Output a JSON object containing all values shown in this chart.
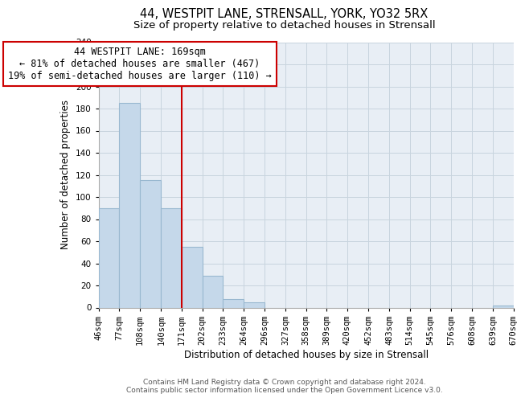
{
  "title_line1": "44, WESTPIT LANE, STRENSALL, YORK, YO32 5RX",
  "title_line2": "Size of property relative to detached houses in Strensall",
  "xlabel": "Distribution of detached houses by size in Strensall",
  "ylabel": "Number of detached properties",
  "bar_color": "#c5d8ea",
  "bar_edge_color": "#99b8d0",
  "bin_edges": [
    46,
    77,
    108,
    140,
    171,
    202,
    233,
    264,
    296,
    327,
    358,
    389,
    420,
    452,
    483,
    514,
    545,
    576,
    608,
    639,
    670
  ],
  "bar_heights": [
    90,
    185,
    115,
    90,
    55,
    29,
    8,
    5,
    0,
    0,
    0,
    0,
    0,
    0,
    0,
    0,
    0,
    0,
    0,
    2
  ],
  "tick_labels": [
    "46sqm",
    "77sqm",
    "108sqm",
    "140sqm",
    "171sqm",
    "202sqm",
    "233sqm",
    "264sqm",
    "296sqm",
    "327sqm",
    "358sqm",
    "389sqm",
    "420sqm",
    "452sqm",
    "483sqm",
    "514sqm",
    "545sqm",
    "576sqm",
    "608sqm",
    "639sqm",
    "670sqm"
  ],
  "ylim": [
    0,
    240
  ],
  "yticks": [
    0,
    20,
    40,
    60,
    80,
    100,
    120,
    140,
    160,
    180,
    200,
    220,
    240
  ],
  "vline_x": 171,
  "vline_color": "#cc0000",
  "annotation_title": "44 WESTPIT LANE: 169sqm",
  "annotation_line1": "← 81% of detached houses are smaller (467)",
  "annotation_line2": "19% of semi-detached houses are larger (110) →",
  "annotation_box_color": "#ffffff",
  "annotation_box_edge": "#cc0000",
  "footer_line1": "Contains HM Land Registry data © Crown copyright and database right 2024.",
  "footer_line2": "Contains public sector information licensed under the Open Government Licence v3.0.",
  "bg_color": "#ffffff",
  "plot_bg_color": "#e8eef5",
  "grid_color": "#c8d4de",
  "title_fontsize": 10.5,
  "subtitle_fontsize": 9.5,
  "axis_label_fontsize": 8.5,
  "tick_fontsize": 7.5,
  "footer_fontsize": 6.5,
  "annotation_fontsize": 8.5
}
